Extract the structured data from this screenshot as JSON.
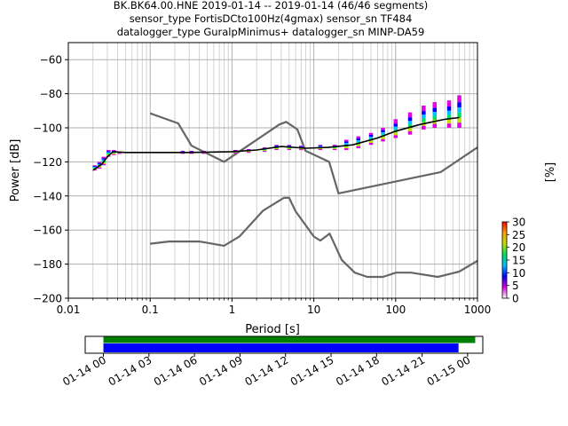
{
  "chart_data": {
    "type": "line",
    "title_lines": [
      "BK.BK64.00.HNE   2019-01-14 -- 2019-01-14  (46/46 segments)",
      "sensor_type FortisDCto100Hz(4gmax) sensor_sn TF484",
      "datalogger_type GuralpMinimus+ datalogger_sn MINP-DA59"
    ],
    "xlabel": "Period [s]",
    "ylabel": "Power [dB]",
    "x_scale": "log",
    "xlim": [
      0.01,
      1000
    ],
    "ylim": [
      -200,
      -50
    ],
    "grid": true,
    "x_ticks": [
      {
        "v": 0.01,
        "label": "0.01"
      },
      {
        "v": 0.1,
        "label": "0.1"
      },
      {
        "v": 1,
        "label": "1"
      },
      {
        "v": 10,
        "label": "10"
      },
      {
        "v": 100,
        "label": "100"
      },
      {
        "v": 1000,
        "label": "1000"
      }
    ],
    "y_ticks": [
      {
        "v": -60,
        "label": "−60"
      },
      {
        "v": -80,
        "label": "−80"
      },
      {
        "v": -100,
        "label": "−100"
      },
      {
        "v": -120,
        "label": "−120"
      },
      {
        "v": -140,
        "label": "−140"
      },
      {
        "v": -160,
        "label": "−160"
      },
      {
        "v": -180,
        "label": "−180"
      },
      {
        "v": -200,
        "label": "−200"
      }
    ],
    "colorbar": {
      "label": "[%]",
      "range": [
        0,
        30
      ],
      "ticks": [
        {
          "v": 0,
          "label": "0"
        },
        {
          "v": 5,
          "label": "5"
        },
        {
          "v": 10,
          "label": "10"
        },
        {
          "v": 15,
          "label": "15"
        },
        {
          "v": 20,
          "label": "20"
        },
        {
          "v": 25,
          "label": "25"
        },
        {
          "v": 30,
          "label": "30"
        }
      ],
      "colors": [
        "#ffffff",
        "#e000e0",
        "#0000ff",
        "#00c0ff",
        "#00e060",
        "#c0e000",
        "#ffa000",
        "#ff0000"
      ]
    },
    "noise_models": {
      "color": "#666666",
      "nhnm": [
        [
          0.1,
          -91.5
        ],
        [
          0.22,
          -97.4
        ],
        [
          0.32,
          -110.5
        ],
        [
          0.8,
          -120
        ],
        [
          3.8,
          -98
        ],
        [
          4.6,
          -96.5
        ],
        [
          6.3,
          -101
        ],
        [
          7.9,
          -113.5
        ],
        [
          15.4,
          -120
        ],
        [
          20,
          -138.5
        ],
        [
          354.8,
          -126
        ],
        [
          1000,
          -111.5
        ]
      ],
      "nlnm": [
        [
          0.1,
          -168
        ],
        [
          0.17,
          -166.7
        ],
        [
          0.4,
          -166.7
        ],
        [
          0.8,
          -169.2
        ],
        [
          1.24,
          -163.7
        ],
        [
          2.4,
          -148.6
        ],
        [
          4.3,
          -141.1
        ],
        [
          5.0,
          -141.1
        ],
        [
          6.0,
          -149
        ],
        [
          10,
          -163.8
        ],
        [
          12,
          -166.2
        ],
        [
          15.6,
          -162.1
        ],
        [
          21.9,
          -177.5
        ],
        [
          31.6,
          -185
        ],
        [
          45,
          -187.5
        ],
        [
          70,
          -187.5
        ],
        [
          101,
          -185
        ],
        [
          154,
          -185
        ],
        [
          328,
          -187.5
        ],
        [
          600,
          -184.4
        ],
        [
          1000,
          -178
        ]
      ]
    },
    "psd_series": {
      "name": "",
      "color": "#000000",
      "points": [
        [
          0.02,
          -125
        ],
        [
          0.026,
          -121
        ],
        [
          0.03,
          -117
        ],
        [
          0.035,
          -114
        ],
        [
          0.05,
          -114.5
        ],
        [
          0.1,
          -114.5
        ],
        [
          0.3,
          -114.5
        ],
        [
          1,
          -114
        ],
        [
          2,
          -113
        ],
        [
          4,
          -111
        ],
        [
          8,
          -112
        ],
        [
          15,
          -111.5
        ],
        [
          30,
          -110
        ],
        [
          60,
          -106
        ],
        [
          100,
          -102
        ],
        [
          200,
          -98
        ],
        [
          400,
          -95
        ],
        [
          600,
          -94
        ]
      ]
    },
    "psd_density": [
      {
        "p": 0.021,
        "lo": -125,
        "hi": -122,
        "pct": 12
      },
      {
        "p": 0.024,
        "lo": -124,
        "hi": -120,
        "pct": 10
      },
      {
        "p": 0.027,
        "lo": -122,
        "hi": -117,
        "pct": 8
      },
      {
        "p": 0.031,
        "lo": -117,
        "hi": -113,
        "pct": 6
      },
      {
        "p": 0.036,
        "lo": -116,
        "hi": -113,
        "pct": 5
      },
      {
        "p": 0.042,
        "lo": -115,
        "hi": -114,
        "pct": 4
      },
      {
        "p": 0.25,
        "lo": -115,
        "hi": -113.5,
        "pct": 3
      },
      {
        "p": 0.32,
        "lo": -115,
        "hi": -113.5,
        "pct": 3
      },
      {
        "p": 0.45,
        "lo": -115,
        "hi": -113.5,
        "pct": 3
      },
      {
        "p": 1.1,
        "lo": -115,
        "hi": -113,
        "pct": 3
      },
      {
        "p": 1.6,
        "lo": -114.5,
        "hi": -112.5,
        "pct": 4
      },
      {
        "p": 2.5,
        "lo": -114,
        "hi": -111.5,
        "pct": 6
      },
      {
        "p": 3.5,
        "lo": -113,
        "hi": -110,
        "pct": 14
      },
      {
        "p": 5.0,
        "lo": -113,
        "hi": -110,
        "pct": 14
      },
      {
        "p": 7.0,
        "lo": -113,
        "hi": -110.5,
        "pct": 12
      },
      {
        "p": 12,
        "lo": -113,
        "hi": -110,
        "pct": 10
      },
      {
        "p": 18,
        "lo": -113,
        "hi": -110,
        "pct": 9
      },
      {
        "p": 25,
        "lo": -113,
        "hi": -107,
        "pct": 7
      },
      {
        "p": 35,
        "lo": -112,
        "hi": -105,
        "pct": 7
      },
      {
        "p": 50,
        "lo": -110,
        "hi": -103,
        "pct": 6
      },
      {
        "p": 70,
        "lo": -108,
        "hi": -100,
        "pct": 6
      },
      {
        "p": 100,
        "lo": -106,
        "hi": -96,
        "pct": 5
      },
      {
        "p": 150,
        "lo": -104,
        "hi": -92,
        "pct": 5
      },
      {
        "p": 220,
        "lo": -101,
        "hi": -88,
        "pct": 4
      },
      {
        "p": 300,
        "lo": -100,
        "hi": -86,
        "pct": 4
      },
      {
        "p": 450,
        "lo": -100,
        "hi": -85,
        "pct": 4
      },
      {
        "p": 600,
        "lo": -100,
        "hi": -82,
        "pct": 3
      }
    ]
  },
  "timeline": {
    "ticks": [
      {
        "v": 0,
        "label": "01-14 00"
      },
      {
        "v": 3,
        "label": "01-14 03"
      },
      {
        "v": 6,
        "label": "01-14 06"
      },
      {
        "v": 9,
        "label": "01-14 09"
      },
      {
        "v": 12,
        "label": "01-14 12"
      },
      {
        "v": 15,
        "label": "01-14 15"
      },
      {
        "v": 18,
        "label": "01-14 18"
      },
      {
        "v": 21,
        "label": "01-14 21"
      },
      {
        "v": 24,
        "label": "01-15 00"
      }
    ],
    "range_hours": [
      -1.2,
      25
    ],
    "data_bar": {
      "start": 0,
      "end": 24.5,
      "color": "#008000"
    },
    "psd_bar": {
      "start": 0,
      "end": 23.4,
      "color": "#0000ff"
    }
  }
}
